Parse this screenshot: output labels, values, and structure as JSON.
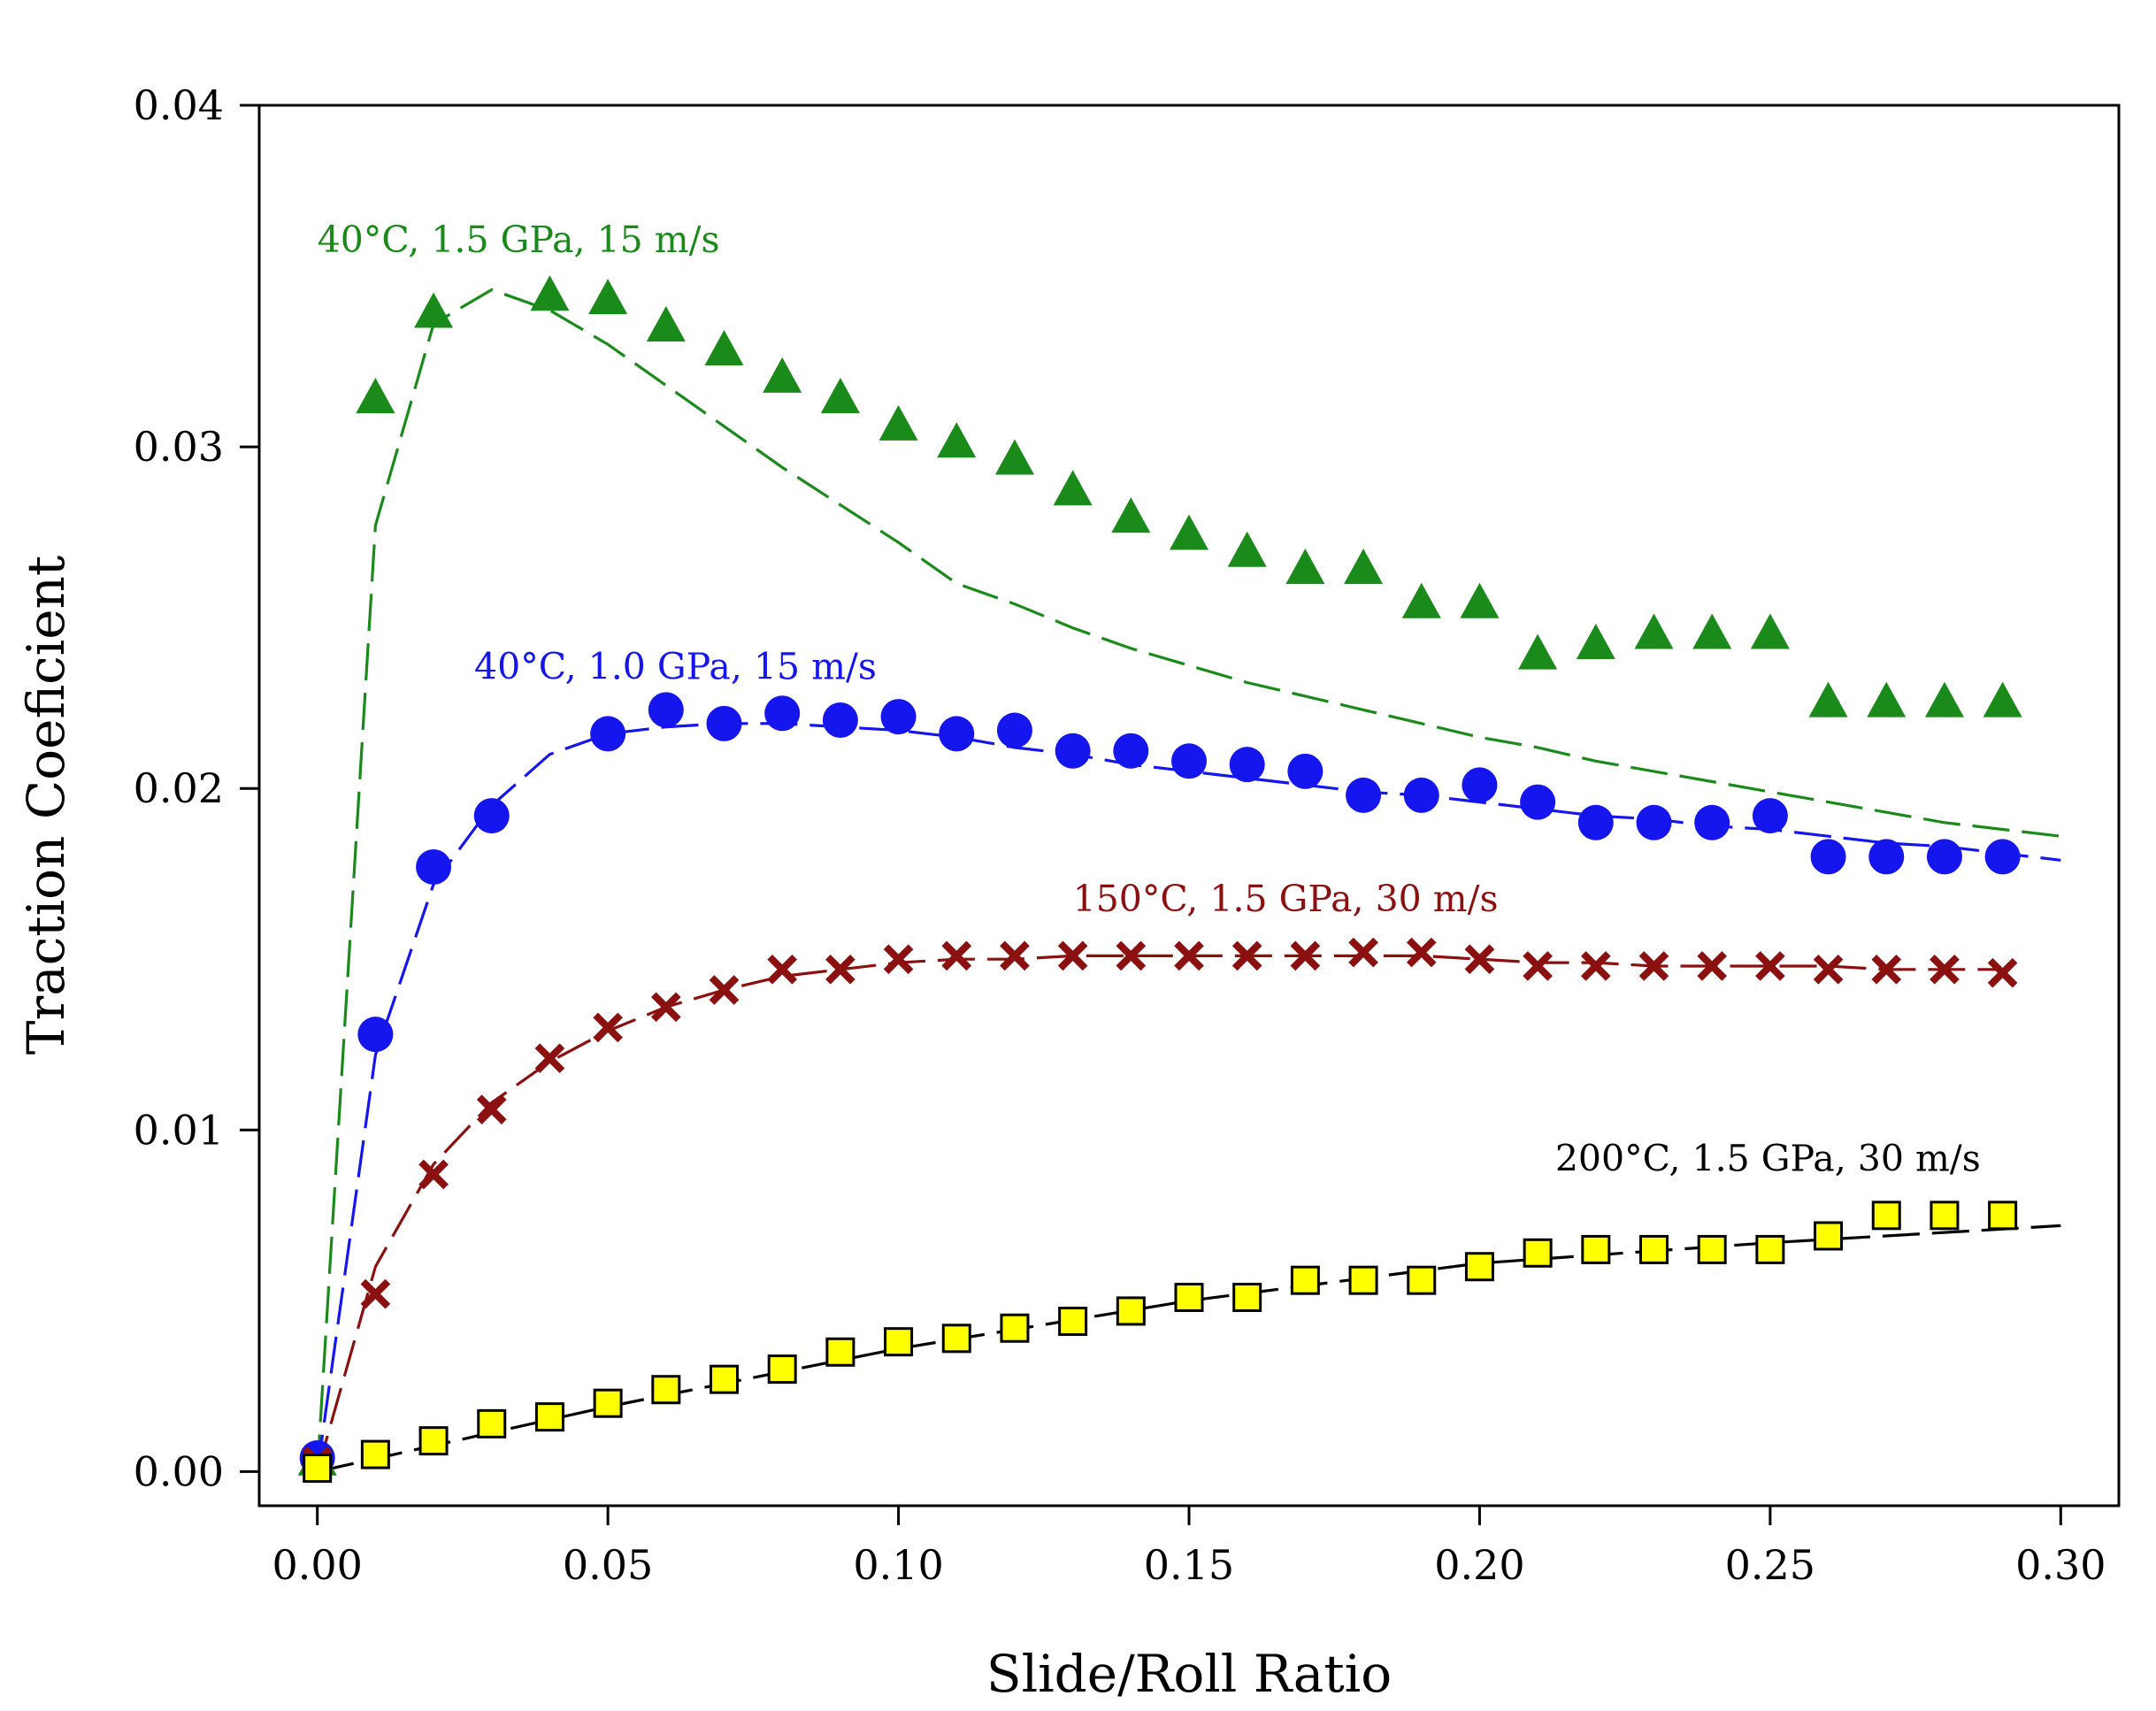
{
  "chart_data": {
    "type": "scatter",
    "title": "",
    "xlabel": "Slide/Roll Ratio",
    "ylabel": "Traction Coeficient",
    "xlim": [
      -0.01,
      0.31
    ],
    "ylim": [
      -0.001,
      0.04
    ],
    "xticks": [
      0.0,
      0.05,
      0.1,
      0.15,
      0.2,
      0.25,
      0.3
    ],
    "xtick_labels": [
      "0.00",
      "0.05",
      "0.10",
      "0.15",
      "0.20",
      "0.25",
      "0.30"
    ],
    "yticks": [
      0.0,
      0.01,
      0.02,
      0.03,
      0.04
    ],
    "ytick_labels": [
      "0.00",
      "0.01",
      "0.02",
      "0.03",
      "0.04"
    ],
    "grid": false,
    "legend": "none",
    "series": [
      {
        "name": "40°C, 1.5 GPa, 15 m/s",
        "color": "#1a8a1a",
        "marker": "triangle",
        "marker_fill": "#1a8a1a",
        "x": [
          0.0,
          0.01,
          0.02,
          0.04,
          0.05,
          0.06,
          0.07,
          0.08,
          0.09,
          0.1,
          0.11,
          0.12,
          0.13,
          0.14,
          0.15,
          0.16,
          0.17,
          0.18,
          0.19,
          0.2,
          0.21,
          0.22,
          0.23,
          0.24,
          0.25,
          0.26,
          0.27,
          0.28,
          0.29
        ],
        "y": [
          0.0003,
          0.0314,
          0.0339,
          0.0344,
          0.0343,
          0.0335,
          0.0328,
          0.032,
          0.0314,
          0.0306,
          0.0301,
          0.0296,
          0.0287,
          0.0279,
          0.0274,
          0.0269,
          0.0264,
          0.0264,
          0.0254,
          0.0254,
          0.0239,
          0.0242,
          0.0245,
          0.0245,
          0.0245,
          0.0225,
          0.0225,
          0.0225,
          0.0225
        ],
        "fit_x": [
          0.0,
          0.01,
          0.02,
          0.03,
          0.04,
          0.05,
          0.06,
          0.07,
          0.08,
          0.09,
          0.1,
          0.11,
          0.12,
          0.13,
          0.14,
          0.15,
          0.16,
          0.17,
          0.18,
          0.19,
          0.2,
          0.21,
          0.22,
          0.23,
          0.24,
          0.25,
          0.26,
          0.27,
          0.28,
          0.29,
          0.3
        ],
        "fit_y": [
          0.0,
          0.0277,
          0.0336,
          0.0346,
          0.034,
          0.033,
          0.0318,
          0.0306,
          0.0294,
          0.0283,
          0.0272,
          0.026,
          0.0254,
          0.0247,
          0.0241,
          0.0236,
          0.0231,
          0.0227,
          0.0223,
          0.0219,
          0.0215,
          0.0212,
          0.0208,
          0.0205,
          0.0202,
          0.0199,
          0.0196,
          0.0193,
          0.019,
          0.0188,
          0.0186
        ]
      },
      {
        "name": "40°C, 1.0 GPa, 15 m/s",
        "color": "#1515ee",
        "marker": "circle",
        "marker_fill": "#1515ee",
        "x": [
          0.0,
          0.01,
          0.02,
          0.03,
          0.05,
          0.06,
          0.07,
          0.08,
          0.09,
          0.1,
          0.11,
          0.12,
          0.13,
          0.14,
          0.15,
          0.16,
          0.17,
          0.18,
          0.19,
          0.2,
          0.21,
          0.22,
          0.23,
          0.24,
          0.25,
          0.26,
          0.27,
          0.28,
          0.29
        ],
        "y": [
          0.0004,
          0.0128,
          0.0177,
          0.0192,
          0.0216,
          0.0223,
          0.0219,
          0.0222,
          0.022,
          0.0221,
          0.0216,
          0.0217,
          0.0211,
          0.0211,
          0.0208,
          0.0207,
          0.0205,
          0.0198,
          0.0198,
          0.0201,
          0.0196,
          0.019,
          0.019,
          0.019,
          0.0192,
          0.018,
          0.018,
          0.018,
          0.018
        ],
        "fit_x": [
          0.0,
          0.01,
          0.02,
          0.03,
          0.04,
          0.05,
          0.06,
          0.07,
          0.08,
          0.09,
          0.1,
          0.11,
          0.12,
          0.13,
          0.14,
          0.15,
          0.16,
          0.17,
          0.18,
          0.19,
          0.2,
          0.21,
          0.22,
          0.23,
          0.24,
          0.25,
          0.26,
          0.27,
          0.28,
          0.29,
          0.3
        ],
        "fit_y": [
          0.0,
          0.0122,
          0.0172,
          0.0195,
          0.021,
          0.0216,
          0.0218,
          0.0219,
          0.0219,
          0.0218,
          0.0217,
          0.0215,
          0.0212,
          0.021,
          0.0207,
          0.0205,
          0.0203,
          0.0201,
          0.0199,
          0.0198,
          0.0196,
          0.0194,
          0.0192,
          0.0191,
          0.0189,
          0.0188,
          0.0186,
          0.0184,
          0.0183,
          0.0181,
          0.0179
        ]
      },
      {
        "name": "150°C, 1.5 GPa, 30 m/s",
        "color": "#8b1010",
        "marker": "x",
        "marker_fill": "#8b1010",
        "x": [
          0.0,
          0.01,
          0.02,
          0.03,
          0.04,
          0.05,
          0.06,
          0.07,
          0.08,
          0.09,
          0.1,
          0.11,
          0.12,
          0.13,
          0.14,
          0.15,
          0.16,
          0.17,
          0.18,
          0.19,
          0.2,
          0.21,
          0.22,
          0.23,
          0.24,
          0.25,
          0.26,
          0.27,
          0.28,
          0.29
        ],
        "y": [
          0.0003,
          0.0052,
          0.0087,
          0.0106,
          0.0121,
          0.013,
          0.0136,
          0.0141,
          0.0147,
          0.0147,
          0.015,
          0.0151,
          0.0151,
          0.0151,
          0.0151,
          0.0151,
          0.0151,
          0.0151,
          0.0152,
          0.0152,
          0.015,
          0.0148,
          0.0148,
          0.0148,
          0.0148,
          0.0148,
          0.0147,
          0.0147,
          0.0147,
          0.0146
        ],
        "fit_x": [
          0.0,
          0.01,
          0.02,
          0.03,
          0.04,
          0.05,
          0.06,
          0.07,
          0.08,
          0.09,
          0.1,
          0.11,
          0.12,
          0.13,
          0.14,
          0.15,
          0.16,
          0.17,
          0.18,
          0.19,
          0.2,
          0.21,
          0.22,
          0.23,
          0.24,
          0.25,
          0.26,
          0.27,
          0.28,
          0.29
        ],
        "fit_y": [
          0.0,
          0.006,
          0.009,
          0.0108,
          0.012,
          0.0129,
          0.0136,
          0.0141,
          0.0145,
          0.0147,
          0.0149,
          0.015,
          0.015,
          0.0151,
          0.0151,
          0.0151,
          0.0151,
          0.0151,
          0.0151,
          0.0151,
          0.015,
          0.0149,
          0.0149,
          0.0148,
          0.0148,
          0.0148,
          0.0148,
          0.0147,
          0.0147,
          0.0147
        ]
      },
      {
        "name": "200°C, 1.5 GPa, 30 m/s",
        "color": "#000000",
        "marker": "square",
        "marker_fill": "#ffff00",
        "x": [
          0.0,
          0.01,
          0.02,
          0.03,
          0.04,
          0.05,
          0.06,
          0.07,
          0.08,
          0.09,
          0.1,
          0.11,
          0.12,
          0.13,
          0.14,
          0.15,
          0.16,
          0.17,
          0.18,
          0.19,
          0.2,
          0.21,
          0.22,
          0.23,
          0.24,
          0.25,
          0.26,
          0.27,
          0.28,
          0.29
        ],
        "y": [
          0.0001,
          0.0005,
          0.0009,
          0.0014,
          0.0016,
          0.002,
          0.0024,
          0.0027,
          0.003,
          0.0035,
          0.0038,
          0.0039,
          0.0042,
          0.0044,
          0.0047,
          0.0051,
          0.0051,
          0.0056,
          0.0056,
          0.0056,
          0.006,
          0.0064,
          0.0065,
          0.0065,
          0.0065,
          0.0065,
          0.0069,
          0.0075,
          0.0075,
          0.0075
        ],
        "fit_x": [
          0.0,
          0.05,
          0.1,
          0.15,
          0.2,
          0.25,
          0.3
        ],
        "fit_y": [
          0.0,
          0.0019,
          0.0036,
          0.005,
          0.0061,
          0.0067,
          0.0072
        ]
      }
    ],
    "annotations": [
      {
        "text": "40°C, 1.5 GPa, 15 m/s",
        "color": "#1a8a1a",
        "x": 0.0,
        "y": 0.0357
      },
      {
        "text": "40°C, 1.0 GPa, 15 m/s",
        "color": "#1515ee",
        "x": 0.027,
        "y": 0.0232
      },
      {
        "text": "150°C, 1.5 GPa, 30 m/s",
        "color": "#8b1010",
        "x": 0.13,
        "y": 0.0164
      },
      {
        "text": "200°C, 1.5 GPa, 30 m/s",
        "color": "#000000",
        "x": 0.213,
        "y": 0.0088
      }
    ]
  }
}
